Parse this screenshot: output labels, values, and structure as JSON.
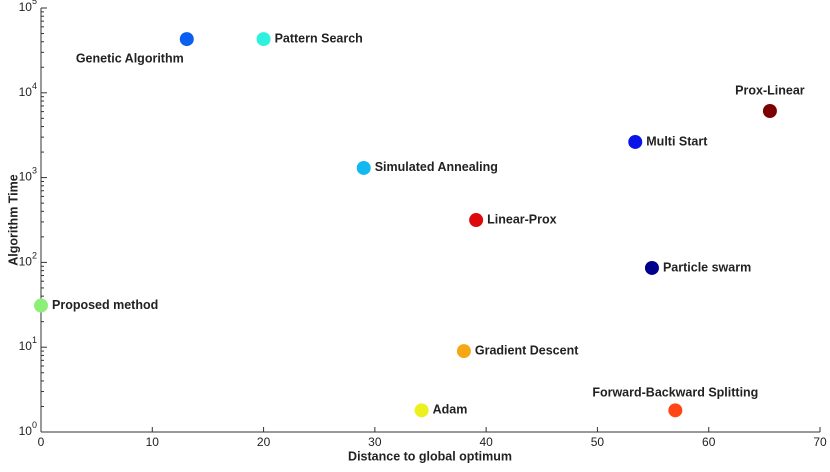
{
  "chart_data": {
    "type": "scatter",
    "xlabel": "Distance to global optimum",
    "ylabel": "Algorithm Time",
    "xlim": [
      0,
      70
    ],
    "xticks": [
      0,
      10,
      20,
      30,
      40,
      50,
      60,
      70
    ],
    "ylim": [
      1,
      100000
    ],
    "yscale": "log",
    "yticks": [
      {
        "value": 1,
        "label": "10^0"
      },
      {
        "value": 10,
        "label": "10^1"
      },
      {
        "value": 100,
        "label": "10^2"
      },
      {
        "value": 1000,
        "label": "10^3"
      },
      {
        "value": 10000,
        "label": "10^4"
      },
      {
        "value": 100000,
        "label": "10^5"
      }
    ],
    "points": [
      {
        "name": "Genetic Algorithm",
        "x": 13.1,
        "y": 43000,
        "color": "#0a5ef0"
      },
      {
        "name": "Pattern Search",
        "x": 20.0,
        "y": 43000,
        "color": "#30f0e0"
      },
      {
        "name": "Prox-Linear",
        "x": 65.5,
        "y": 6100,
        "color": "#7d0000"
      },
      {
        "name": "Multi Start",
        "x": 53.4,
        "y": 2630,
        "color": "#0a14e6"
      },
      {
        "name": "Simulated Annealing",
        "x": 29.0,
        "y": 1300,
        "color": "#12b8f0"
      },
      {
        "name": "Linear-Prox",
        "x": 39.1,
        "y": 316,
        "color": "#dc0a0a"
      },
      {
        "name": "Particle swarm",
        "x": 54.9,
        "y": 86,
        "color": "#00008c"
      },
      {
        "name": "Proposed method",
        "x": 0,
        "y": 31,
        "color": "#8cf078"
      },
      {
        "name": "Gradient Descent",
        "x": 38.0,
        "y": 9.0,
        "color": "#f5a814"
      },
      {
        "name": "Adam",
        "x": 34.2,
        "y": 1.8,
        "color": "#ebf01e"
      },
      {
        "name": "Forward-Backward Splitting",
        "x": 57.0,
        "y": 1.8,
        "color": "#ff4614"
      }
    ]
  }
}
